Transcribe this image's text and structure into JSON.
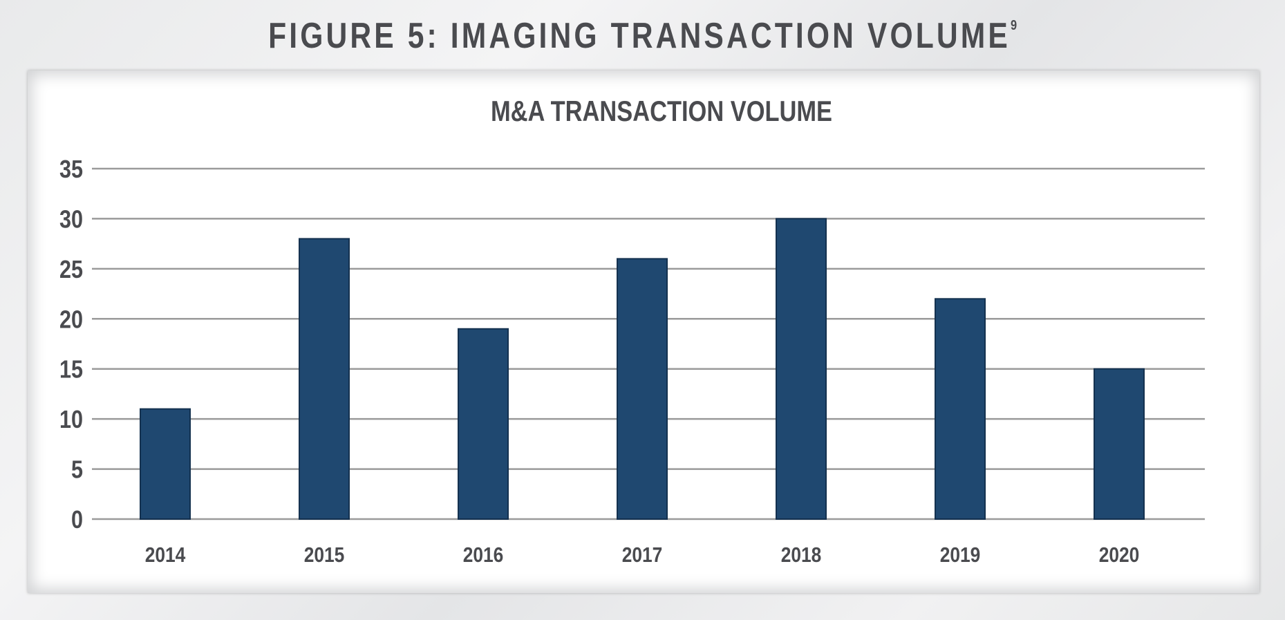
{
  "figure": {
    "title": "FIGURE 5: IMAGING TRANSACTION VOLUME",
    "footnote_marker": "9"
  },
  "chart_data": {
    "type": "bar",
    "title": "M&A TRANSACTION VOLUME",
    "xlabel": "",
    "ylabel": "",
    "categories": [
      "2014",
      "2015",
      "2016",
      "2017",
      "2018",
      "2019",
      "2020"
    ],
    "values": [
      11,
      28,
      19,
      26,
      30,
      22,
      15
    ],
    "ylim": [
      0,
      35
    ],
    "yticks": [
      0,
      5,
      10,
      15,
      20,
      25,
      30,
      35
    ],
    "grid": true,
    "colors": {
      "bar": "#1f4870",
      "bar_edge": "#14314f",
      "grid": "#9a9a9a",
      "text": "#4a4b4f"
    }
  }
}
